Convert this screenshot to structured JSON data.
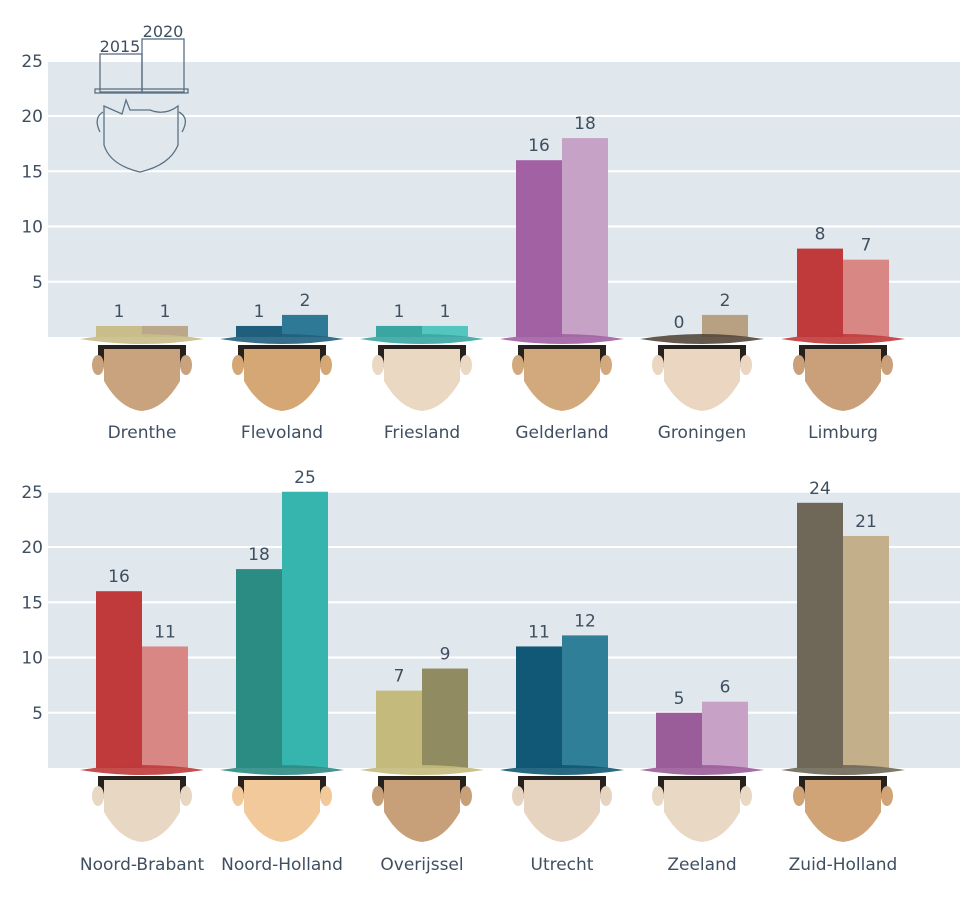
{
  "chart_data": {
    "type": "bar",
    "categories": [
      "Drenthe",
      "Flevoland",
      "Friesland",
      "Gelderland",
      "Groningen",
      "Limburg",
      "Noord-Brabant",
      "Noord-Holland",
      "Overijssel",
      "Utrecht",
      "Zeeland",
      "Zuid-Holland"
    ],
    "series": [
      {
        "name": "2015",
        "values": [
          1,
          1,
          1,
          16,
          0,
          8,
          16,
          18,
          7,
          11,
          5,
          24
        ]
      },
      {
        "name": "2020",
        "values": [
          1,
          2,
          1,
          18,
          2,
          7,
          11,
          25,
          9,
          12,
          6,
          21
        ]
      }
    ],
    "ylim": [
      0,
      25
    ],
    "yticks": [
      5,
      10,
      15,
      20,
      25
    ],
    "grid": true,
    "legend": "top-left",
    "panels": [
      {
        "categories": [
          "Drenthe",
          "Flevoland",
          "Friesland",
          "Gelderland",
          "Groningen",
          "Limburg"
        ]
      },
      {
        "categories": [
          "Noord-Brabant",
          "Noord-Holland",
          "Overijssel",
          "Utrecht",
          "Zeeland",
          "Zuid-Holland"
        ]
      }
    ],
    "colors": {
      "Drenthe": [
        "#c9bd8a",
        "#bba88a"
      ],
      "Flevoland": [
        "#1f5f7c",
        "#2e7a96"
      ],
      "Friesland": [
        "#3aa6a2",
        "#53c6c0"
      ],
      "Gelderland": [
        "#a161a3",
        "#c6a2c6"
      ],
      "Groningen": [
        "#54473b",
        "#b8a082"
      ],
      "Limburg": [
        "#c03a3b",
        "#d98785"
      ],
      "Noord-Brabant": [
        "#c03a3b",
        "#d98785"
      ],
      "Noord-Holland": [
        "#2b8c84",
        "#36b5ae"
      ],
      "Overijssel": [
        "#c4ba7c",
        "#918b62"
      ],
      "Utrecht": [
        "#105876",
        "#2f7f98"
      ],
      "Zeeland": [
        "#9b5c9a",
        "#c8a2c6"
      ],
      "Zuid-Holland": [
        "#6f6858",
        "#c3af8a"
      ]
    },
    "background": "#e1e8ed",
    "gridline": "#ffffff",
    "text_color": "#3f4f60"
  }
}
